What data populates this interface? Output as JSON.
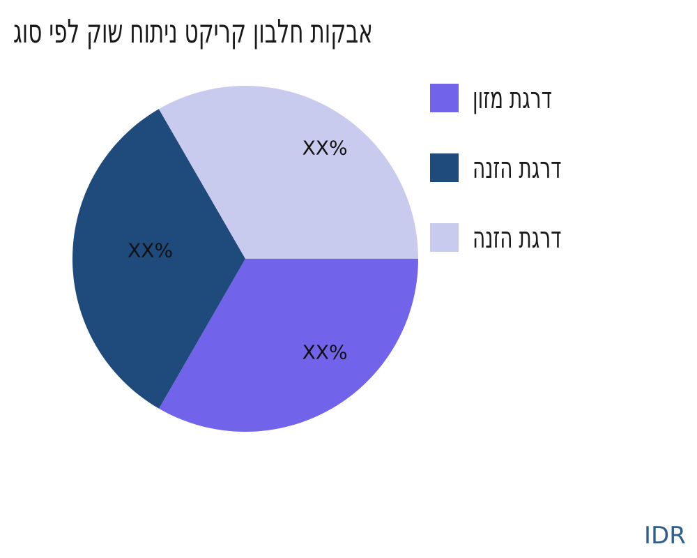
{
  "title": "אבקות חלבון קריקט ניתוח שוק לפי סוג",
  "footer": {
    "currency_label": "IDR",
    "color": "#2E5E8C"
  },
  "chart_data": {
    "type": "pie",
    "title": "אבקות חלבון קריקט ניתוח שוק לפי סוג",
    "legend_position": "right",
    "start_angle_deg": 0,
    "direction": "clockwise",
    "slices": [
      {
        "label": "דרגת מזון",
        "value": 33.33,
        "percent_label": "XX%",
        "color": "#7164EA"
      },
      {
        "label": "דרגת הזנה",
        "value": 33.33,
        "percent_label": "XX%",
        "color": "#1F4A7C"
      },
      {
        "label": "דרגת הזנה",
        "value": 33.34,
        "percent_label": "XX%",
        "color": "#C8CBEE"
      }
    ]
  }
}
